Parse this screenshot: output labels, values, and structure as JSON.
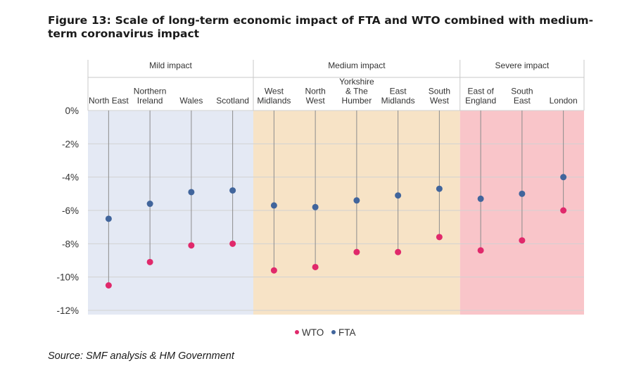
{
  "title": "Figure 13: Scale of long-term economic impact of FTA and WTO combined with medium-term coronavirus impact",
  "source": "Source: SMF analysis & HM Government",
  "chart_data": {
    "type": "scatter",
    "title": "Figure 13: Scale of long-term economic impact of FTA and WTO combined with medium-term coronavirus impact",
    "ylim": [
      -12,
      0
    ],
    "yticks": [
      0,
      -2,
      -4,
      -6,
      -8,
      -10,
      -12
    ],
    "ytick_labels": [
      "0%",
      "-2%",
      "-4%",
      "-6%",
      "-8%",
      "-10%",
      "-12%"
    ],
    "grid": "horizontal",
    "legend_position": "bottom-center",
    "groups": [
      {
        "name": "Mild impact",
        "color": "#e4e9f4",
        "categories": [
          0,
          1,
          2,
          3
        ]
      },
      {
        "name": "Medium impact",
        "color": "#f7e3c6",
        "categories": [
          4,
          5,
          6,
          7,
          8
        ]
      },
      {
        "name": "Severe impact",
        "color": "#f9c5c9",
        "categories": [
          9,
          10,
          11
        ]
      }
    ],
    "categories": [
      [
        "North East"
      ],
      [
        "Northern",
        "Ireland"
      ],
      [
        "Wales"
      ],
      [
        "Scotland"
      ],
      [
        "West",
        "Midlands"
      ],
      [
        "North",
        "West"
      ],
      [
        "Yorkshire",
        "& The",
        "Humber"
      ],
      [
        "East",
        "Midlands"
      ],
      [
        "South",
        "West"
      ],
      [
        "East of",
        "England"
      ],
      [
        "South",
        "East"
      ],
      [
        "London"
      ]
    ],
    "series": [
      {
        "name": "WTO",
        "color": "#e0296b",
        "values": [
          -10.5,
          -9.1,
          -8.1,
          -8.0,
          -9.6,
          -9.4,
          -8.5,
          -8.5,
          -7.6,
          -8.4,
          -7.8,
          -6.0
        ]
      },
      {
        "name": "FTA",
        "color": "#41659c",
        "values": [
          -6.5,
          -5.6,
          -4.9,
          -4.8,
          -5.7,
          -5.8,
          -5.4,
          -5.1,
          -4.7,
          -5.3,
          -5.0,
          -4.0
        ]
      }
    ]
  }
}
